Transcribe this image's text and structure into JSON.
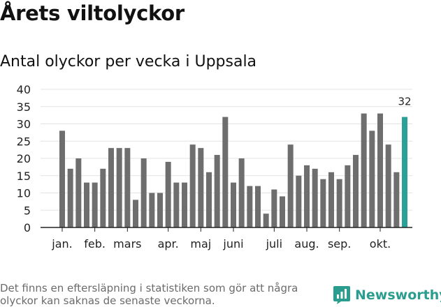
{
  "title": "Årets viltolyckor",
  "subtitle": "Antal olyckor per vecka i Uppsala",
  "footnote": "Det finns en eftersläpning i statistiken som gör att några olyckor kan saknas de senaste veckorna.",
  "brand": {
    "name": "Newsworthy",
    "icon": "newsworthy-logo-icon"
  },
  "colors": {
    "bar": "#6e6e6e",
    "highlight": "#2aa198",
    "grid": "#e3e3e3",
    "axis": "#222222",
    "brand": "#2a9d8f"
  },
  "chart_data": {
    "type": "bar",
    "title": "Antal olyckor per vecka i Uppsala",
    "xlabel": "",
    "ylabel": "",
    "ylim": [
      0,
      40
    ],
    "yticks": [
      0,
      5,
      10,
      15,
      20,
      25,
      30,
      35,
      40
    ],
    "grid": true,
    "weeks": [
      1,
      2,
      3,
      4,
      5,
      6,
      7,
      8,
      9,
      10,
      11,
      12,
      13,
      14,
      15,
      16,
      17,
      18,
      19,
      20,
      21,
      22,
      23,
      24,
      25,
      26,
      27,
      28,
      29,
      30,
      31,
      32,
      33,
      34,
      35,
      36,
      37,
      38,
      39,
      40,
      41,
      42,
      43
    ],
    "values": [
      28,
      17,
      20,
      13,
      13,
      17,
      23,
      23,
      23,
      8,
      20,
      10,
      10,
      19,
      13,
      13,
      24,
      23,
      16,
      21,
      32,
      13,
      20,
      12,
      12,
      4,
      11,
      9,
      24,
      15,
      18,
      17,
      14,
      16,
      14,
      18,
      21,
      33,
      28,
      33,
      24,
      16,
      32
    ],
    "highlight_index": 42,
    "highlight_label": "32",
    "month_labels": [
      {
        "label": "jan.",
        "week": 1
      },
      {
        "label": "feb.",
        "week": 5
      },
      {
        "label": "mars",
        "week": 9
      },
      {
        "label": "apr.",
        "week": 14
      },
      {
        "label": "maj",
        "week": 18
      },
      {
        "label": "juni",
        "week": 22
      },
      {
        "label": "juli",
        "week": 27
      },
      {
        "label": "aug.",
        "week": 31
      },
      {
        "label": "sep.",
        "week": 35
      },
      {
        "label": "okt.",
        "week": 40
      }
    ]
  }
}
